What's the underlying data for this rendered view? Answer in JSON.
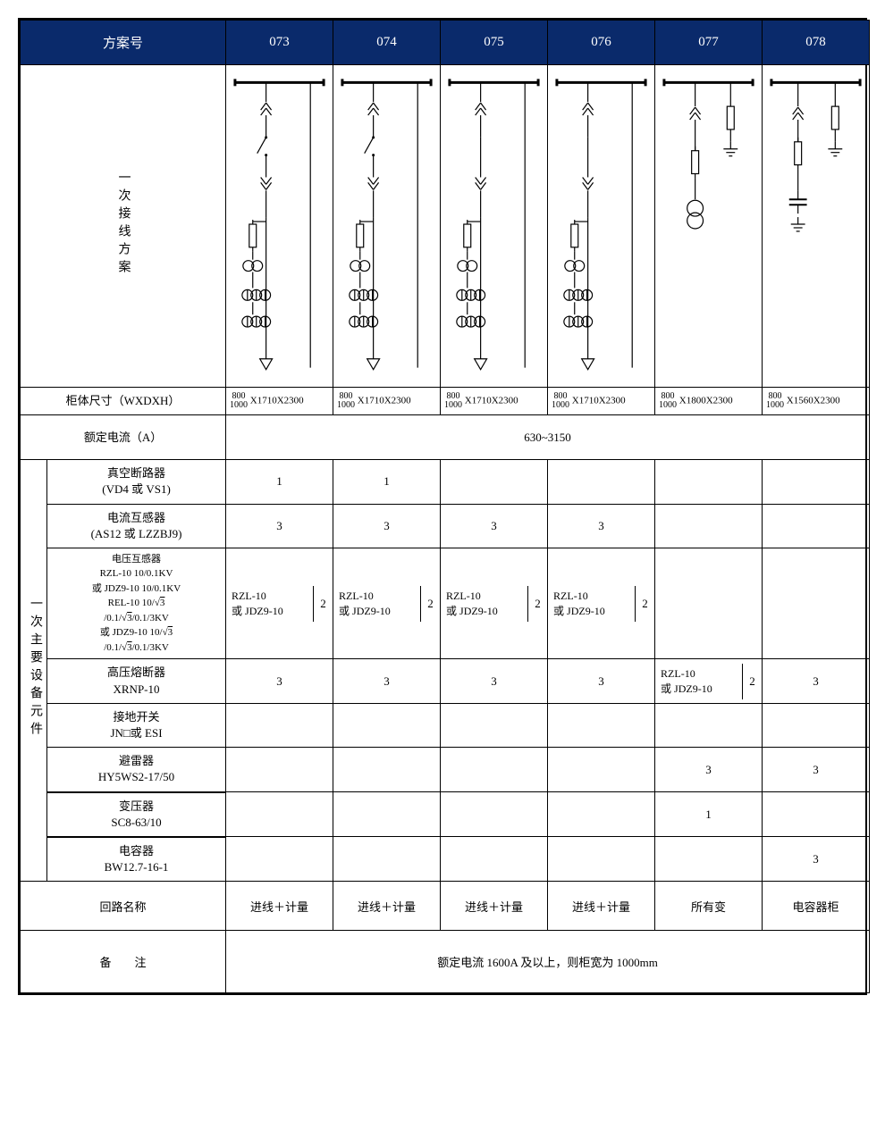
{
  "colors": {
    "header_bg": "#0a2a6b",
    "header_fg": "#ffffff",
    "border": "#000000"
  },
  "header": {
    "scheme_label": "方案号",
    "cols": [
      "073",
      "074",
      "075",
      "076",
      "077",
      "078"
    ]
  },
  "wiring_label": "一次接线方案",
  "diagrams": {
    "types": [
      "A",
      "A",
      "B",
      "B",
      "C",
      "D"
    ],
    "stroke": "#000000",
    "stroke_width": 1.2
  },
  "rows": {
    "cabinet": {
      "label": "柜体尺寸（WXDXH）",
      "cells": [
        {
          "top": "800",
          "bot": "1000",
          "rest": "X1710X2300"
        },
        {
          "top": "800",
          "bot": "1000",
          "rest": "X1710X2300"
        },
        {
          "top": "800",
          "bot": "1000",
          "rest": "X1710X2300"
        },
        {
          "top": "800",
          "bot": "1000",
          "rest": "X1710X2300"
        },
        {
          "top": "800",
          "bot": "1000",
          "rest": "X1800X2300"
        },
        {
          "top": "800",
          "bot": "1000",
          "rest": "X1560X2300"
        }
      ]
    },
    "rated_current": {
      "label": "额定电流（A）",
      "value": "630~3150"
    },
    "equip_side": "一次主要设备元件",
    "equip": [
      {
        "label_lines": [
          "真空断路器",
          "(VD4 或 VS1)"
        ],
        "cells": [
          "1",
          "1",
          "",
          "",
          "",
          ""
        ]
      },
      {
        "label_lines": [
          "电流互感器",
          "(AS12 或 LZZBJ9)"
        ],
        "cells": [
          "3",
          "3",
          "3",
          "3",
          "",
          ""
        ]
      },
      {
        "vt": true,
        "label_lines": [
          "电压互感器",
          "RZL-10 10/0.1KV",
          "或 JDZ9-10 10/0.1KV",
          "REL-10 10/√3",
          "/0.1/√3/0.1/3KV",
          "或 JDZ9-10 10/√3",
          "/0.1/√3/0.1/3KV"
        ],
        "split": {
          "left": "RZL-10\n或 JDZ9-10",
          "right": "2"
        },
        "cells_idx": [
          0,
          1,
          2,
          3
        ],
        "empty_idx": [
          4,
          5
        ]
      },
      {
        "label_lines": [
          "高压熔断器",
          "XRNP-10"
        ],
        "cells": [
          "3",
          "3",
          "3",
          "3",
          {
            "split": {
              "left": "RZL-10\n或 JDZ9-10",
              "right": "2"
            }
          },
          "3"
        ]
      },
      {
        "label_lines": [
          "接地开关",
          "JN□或 ESI"
        ],
        "cells": [
          "",
          "",
          "",
          "",
          "",
          ""
        ]
      },
      {
        "label_lines": [
          "避雷器",
          "HY5WS2-17/50"
        ],
        "cells": [
          "",
          "",
          "",
          "",
          "3",
          "3"
        ]
      },
      {
        "label_lines": [
          "变压器",
          "SC8-63/10"
        ],
        "cells": [
          "",
          "",
          "",
          "",
          "1",
          ""
        ],
        "thick": true
      },
      {
        "label_lines": [
          "电容器",
          "BW12.7-16-1"
        ],
        "cells": [
          "",
          "",
          "",
          "",
          "",
          "3"
        ]
      }
    ],
    "circuit_name": {
      "label": "回路名称",
      "cells": [
        "进线＋计量",
        "进线＋计量",
        "进线＋计量",
        "进线＋计量",
        "所有变",
        "电容器柜"
      ]
    },
    "note": {
      "label": "备　　注",
      "value": "额定电流 1600A 及以上，则柜宽为 1000mm"
    }
  }
}
